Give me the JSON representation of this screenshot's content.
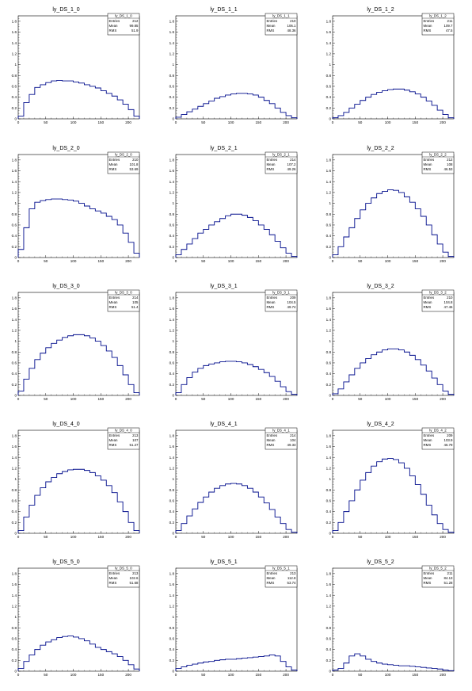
{
  "chart_data": [
    {
      "type": "line",
      "title": "ly_DS_1_0",
      "stats": {
        "name": "ly_DS_1_0",
        "entries_label": "Entries",
        "entries": "212",
        "mean_label": "Mean",
        "mean": "99.85",
        "rms_label": "RMS",
        "rms": "51.9"
      },
      "xlim": [
        0,
        220
      ],
      "ylim": [
        0,
        1.9
      ],
      "xticks": [
        0,
        50,
        100,
        150,
        200
      ],
      "yticks": [
        0,
        0.2,
        0.4,
        0.6,
        0.8,
        1,
        1.2,
        1.4,
        1.6,
        1.8
      ],
      "x": [
        0,
        10,
        20,
        30,
        40,
        50,
        60,
        70,
        80,
        90,
        100,
        110,
        120,
        130,
        140,
        150,
        160,
        170,
        180,
        190,
        200,
        210
      ],
      "y": [
        0.05,
        0.3,
        0.45,
        0.58,
        0.63,
        0.67,
        0.7,
        0.71,
        0.7,
        0.7,
        0.68,
        0.66,
        0.63,
        0.6,
        0.57,
        0.52,
        0.47,
        0.42,
        0.35,
        0.27,
        0.17,
        0.05
      ]
    },
    {
      "type": "line",
      "title": "ly_DS_1_1",
      "stats": {
        "name": "ly_DS_1_1",
        "entries_label": "Entries",
        "entries": "210",
        "mean_label": "Mean",
        "mean": "106.1",
        "rms_label": "RMS",
        "rms": "48.36"
      },
      "xlim": [
        0,
        220
      ],
      "ylim": [
        0,
        1.9
      ],
      "xticks": [
        0,
        50,
        100,
        150,
        200
      ],
      "yticks": [
        0,
        0.2,
        0.4,
        0.6,
        0.8,
        1,
        1.2,
        1.4,
        1.6,
        1.8
      ],
      "x": [
        0,
        10,
        20,
        30,
        40,
        50,
        60,
        70,
        80,
        90,
        100,
        110,
        120,
        130,
        140,
        150,
        160,
        170,
        180,
        190,
        200,
        210
      ],
      "y": [
        0.03,
        0.08,
        0.13,
        0.18,
        0.23,
        0.28,
        0.33,
        0.38,
        0.41,
        0.44,
        0.46,
        0.47,
        0.47,
        0.46,
        0.44,
        0.4,
        0.34,
        0.28,
        0.2,
        0.12,
        0.06,
        0.02
      ]
    },
    {
      "type": "line",
      "title": "ly_DS_1_2",
      "stats": {
        "name": "ly_DS_1_2",
        "entries_label": "Entries",
        "entries": "211",
        "mean_label": "Mean",
        "mean": "109.7",
        "rms_label": "RMS",
        "rms": "47.5"
      },
      "xlim": [
        0,
        220
      ],
      "ylim": [
        0,
        1.9
      ],
      "xticks": [
        0,
        50,
        100,
        150,
        200
      ],
      "yticks": [
        0,
        0.2,
        0.4,
        0.6,
        0.8,
        1,
        1.2,
        1.4,
        1.6,
        1.8
      ],
      "x": [
        0,
        10,
        20,
        30,
        40,
        50,
        60,
        70,
        80,
        90,
        100,
        110,
        120,
        130,
        140,
        150,
        160,
        170,
        180,
        190,
        200,
        210
      ],
      "y": [
        0.02,
        0.06,
        0.12,
        0.2,
        0.27,
        0.34,
        0.4,
        0.45,
        0.49,
        0.52,
        0.54,
        0.55,
        0.55,
        0.53,
        0.5,
        0.46,
        0.4,
        0.33,
        0.25,
        0.16,
        0.08,
        0.02
      ]
    },
    {
      "type": "line",
      "title": "ly_DS_2_0",
      "stats": {
        "name": "ly_DS_2_0",
        "entries_label": "Entries",
        "entries": "210",
        "mean_label": "Mean",
        "mean": "101.8",
        "rms_label": "RMS",
        "rms": "53.69"
      },
      "xlim": [
        0,
        220
      ],
      "ylim": [
        0,
        1.9
      ],
      "xticks": [
        0,
        50,
        100,
        150,
        200
      ],
      "yticks": [
        0,
        0.2,
        0.4,
        0.6,
        0.8,
        1,
        1.2,
        1.4,
        1.6,
        1.8
      ],
      "x": [
        0,
        10,
        20,
        30,
        40,
        50,
        60,
        70,
        80,
        90,
        100,
        110,
        120,
        130,
        140,
        150,
        160,
        170,
        180,
        190,
        200,
        210
      ],
      "y": [
        0.15,
        0.55,
        0.9,
        1.02,
        1.05,
        1.07,
        1.08,
        1.08,
        1.07,
        1.06,
        1.04,
        1.0,
        0.95,
        0.9,
        0.86,
        0.82,
        0.76,
        0.7,
        0.6,
        0.45,
        0.28,
        0.08
      ]
    },
    {
      "type": "line",
      "title": "ly_DS_2_1",
      "stats": {
        "name": "ly_DS_2_1",
        "entries_label": "Entries",
        "entries": "214",
        "mean_label": "Mean",
        "mean": "107.2",
        "rms_label": "RMS",
        "rms": "49.26"
      },
      "xlim": [
        0,
        220
      ],
      "ylim": [
        0,
        1.9
      ],
      "xticks": [
        0,
        50,
        100,
        150,
        200
      ],
      "yticks": [
        0,
        0.2,
        0.4,
        0.6,
        0.8,
        1,
        1.2,
        1.4,
        1.6,
        1.8
      ],
      "x": [
        0,
        10,
        20,
        30,
        40,
        50,
        60,
        70,
        80,
        90,
        100,
        110,
        120,
        130,
        140,
        150,
        160,
        170,
        180,
        190,
        200,
        210
      ],
      "y": [
        0.05,
        0.15,
        0.25,
        0.35,
        0.45,
        0.52,
        0.6,
        0.66,
        0.72,
        0.77,
        0.8,
        0.8,
        0.78,
        0.74,
        0.68,
        0.6,
        0.52,
        0.42,
        0.3,
        0.18,
        0.08,
        0.02
      ]
    },
    {
      "type": "line",
      "title": "ly_DS_2_2",
      "stats": {
        "name": "ly_DS_2_2",
        "entries_label": "Entries",
        "entries": "212",
        "mean_label": "Mean",
        "mean": "108",
        "rms_label": "RMS",
        "rms": "46.53"
      },
      "xlim": [
        0,
        220
      ],
      "ylim": [
        0,
        1.9
      ],
      "xticks": [
        0,
        50,
        100,
        150,
        200
      ],
      "yticks": [
        0,
        0.2,
        0.4,
        0.6,
        0.8,
        1,
        1.2,
        1.4,
        1.6,
        1.8
      ],
      "x": [
        0,
        10,
        20,
        30,
        40,
        50,
        60,
        70,
        80,
        90,
        100,
        110,
        120,
        130,
        140,
        150,
        160,
        170,
        180,
        190,
        200,
        210
      ],
      "y": [
        0.05,
        0.2,
        0.38,
        0.55,
        0.72,
        0.88,
        1.0,
        1.1,
        1.18,
        1.22,
        1.25,
        1.24,
        1.2,
        1.12,
        1.02,
        0.9,
        0.76,
        0.6,
        0.42,
        0.25,
        0.1,
        0.02
      ]
    },
    {
      "type": "line",
      "title": "ly_DS_3_0",
      "stats": {
        "name": "ly_DS_3_0",
        "entries_label": "Entries",
        "entries": "214",
        "mean_label": "Mean",
        "mean": "105",
        "rms_label": "RMS",
        "rms": "51.4"
      },
      "xlim": [
        0,
        220
      ],
      "ylim": [
        0,
        1.9
      ],
      "xticks": [
        0,
        50,
        100,
        150,
        200
      ],
      "yticks": [
        0,
        0.2,
        0.4,
        0.6,
        0.8,
        1,
        1.2,
        1.4,
        1.6,
        1.8
      ],
      "x": [
        0,
        10,
        20,
        30,
        40,
        50,
        60,
        70,
        80,
        90,
        100,
        110,
        120,
        130,
        140,
        150,
        160,
        170,
        180,
        190,
        200,
        210
      ],
      "y": [
        0.08,
        0.3,
        0.5,
        0.66,
        0.78,
        0.88,
        0.96,
        1.02,
        1.07,
        1.1,
        1.12,
        1.12,
        1.1,
        1.06,
        1.0,
        0.92,
        0.82,
        0.7,
        0.55,
        0.38,
        0.2,
        0.05
      ]
    },
    {
      "type": "line",
      "title": "ly_DS_3_1",
      "stats": {
        "name": "ly_DS_3_1",
        "entries_label": "Entries",
        "entries": "209",
        "mean_label": "Mean",
        "mean": "104.5",
        "rms_label": "RMS",
        "rms": "49.74"
      },
      "xlim": [
        0,
        220
      ],
      "ylim": [
        0,
        1.9
      ],
      "xticks": [
        0,
        50,
        100,
        150,
        200
      ],
      "yticks": [
        0,
        0.2,
        0.4,
        0.6,
        0.8,
        1,
        1.2,
        1.4,
        1.6,
        1.8
      ],
      "x": [
        0,
        10,
        20,
        30,
        40,
        50,
        60,
        70,
        80,
        90,
        100,
        110,
        120,
        130,
        140,
        150,
        160,
        170,
        180,
        190,
        200,
        210
      ],
      "y": [
        0.05,
        0.2,
        0.33,
        0.43,
        0.5,
        0.55,
        0.58,
        0.6,
        0.62,
        0.63,
        0.63,
        0.62,
        0.6,
        0.57,
        0.53,
        0.48,
        0.42,
        0.35,
        0.26,
        0.16,
        0.07,
        0.02
      ]
    },
    {
      "type": "line",
      "title": "ly_DS_3_2",
      "stats": {
        "name": "ly_DS_3_2",
        "entries_label": "Entries",
        "entries": "210",
        "mean_label": "Mean",
        "mean": "104.8",
        "rms_label": "RMS",
        "rms": "47.46"
      },
      "xlim": [
        0,
        220
      ],
      "ylim": [
        0,
        1.9
      ],
      "xticks": [
        0,
        50,
        100,
        150,
        200
      ],
      "yticks": [
        0,
        0.2,
        0.4,
        0.6,
        0.8,
        1,
        1.2,
        1.4,
        1.6,
        1.8
      ],
      "x": [
        0,
        10,
        20,
        30,
        40,
        50,
        60,
        70,
        80,
        90,
        100,
        110,
        120,
        130,
        140,
        150,
        160,
        170,
        180,
        190,
        200,
        210
      ],
      "y": [
        0.03,
        0.12,
        0.25,
        0.38,
        0.5,
        0.6,
        0.68,
        0.75,
        0.8,
        0.84,
        0.86,
        0.86,
        0.84,
        0.8,
        0.74,
        0.66,
        0.56,
        0.45,
        0.32,
        0.2,
        0.08,
        0.02
      ]
    },
    {
      "type": "line",
      "title": "ly_DS_4_0",
      "stats": {
        "name": "ly_DS_4_0",
        "entries_label": "Entries",
        "entries": "213",
        "mean_label": "Mean",
        "mean": "107",
        "rms_label": "RMS",
        "rms": "51.27"
      },
      "xlim": [
        0,
        220
      ],
      "ylim": [
        0,
        1.9
      ],
      "xticks": [
        0,
        50,
        100,
        150,
        200
      ],
      "yticks": [
        0,
        0.2,
        0.4,
        0.6,
        0.8,
        1,
        1.2,
        1.4,
        1.6,
        1.8
      ],
      "x": [
        0,
        10,
        20,
        30,
        40,
        50,
        60,
        70,
        80,
        90,
        100,
        110,
        120,
        130,
        140,
        150,
        160,
        170,
        180,
        190,
        200,
        210
      ],
      "y": [
        0.05,
        0.3,
        0.52,
        0.7,
        0.84,
        0.95,
        1.03,
        1.1,
        1.14,
        1.17,
        1.18,
        1.18,
        1.16,
        1.12,
        1.06,
        0.98,
        0.88,
        0.75,
        0.58,
        0.4,
        0.2,
        0.05
      ]
    },
    {
      "type": "line",
      "title": "ly_DS_4_1",
      "stats": {
        "name": "ly_DS_4_1",
        "entries_label": "Entries",
        "entries": "214",
        "mean_label": "Mean",
        "mean": "104",
        "rms_label": "RMS",
        "rms": "49.33"
      },
      "xlim": [
        0,
        220
      ],
      "ylim": [
        0,
        1.9
      ],
      "xticks": [
        0,
        50,
        100,
        150,
        200
      ],
      "yticks": [
        0,
        0.2,
        0.4,
        0.6,
        0.8,
        1,
        1.2,
        1.4,
        1.6,
        1.8
      ],
      "x": [
        0,
        10,
        20,
        30,
        40,
        50,
        60,
        70,
        80,
        90,
        100,
        110,
        120,
        130,
        140,
        150,
        160,
        170,
        180,
        190,
        200,
        210
      ],
      "y": [
        0.05,
        0.18,
        0.32,
        0.45,
        0.57,
        0.67,
        0.76,
        0.83,
        0.88,
        0.91,
        0.92,
        0.91,
        0.88,
        0.83,
        0.76,
        0.67,
        0.56,
        0.44,
        0.3,
        0.18,
        0.07,
        0.02
      ]
    },
    {
      "type": "line",
      "title": "ly_DS_4_2",
      "stats": {
        "name": "ly_DS_4_2",
        "entries_label": "Entries",
        "entries": "209",
        "mean_label": "Mean",
        "mean": "103.9",
        "rms_label": "RMS",
        "rms": "46.79"
      },
      "xlim": [
        0,
        220
      ],
      "ylim": [
        0,
        1.9
      ],
      "xticks": [
        0,
        50,
        100,
        150,
        200
      ],
      "yticks": [
        0,
        0.2,
        0.4,
        0.6,
        0.8,
        1,
        1.2,
        1.4,
        1.6,
        1.8
      ],
      "x": [
        0,
        10,
        20,
        30,
        40,
        50,
        60,
        70,
        80,
        90,
        100,
        110,
        120,
        130,
        140,
        150,
        160,
        170,
        180,
        190,
        200,
        210
      ],
      "y": [
        0.05,
        0.2,
        0.4,
        0.6,
        0.8,
        0.98,
        1.12,
        1.24,
        1.32,
        1.37,
        1.38,
        1.36,
        1.3,
        1.2,
        1.06,
        0.9,
        0.72,
        0.52,
        0.34,
        0.18,
        0.07,
        0.02
      ]
    },
    {
      "type": "line",
      "title": "ly_DS_5_0",
      "stats": {
        "name": "ly_DS_5_0",
        "entries_label": "Entries",
        "entries": "213",
        "mean_label": "Mean",
        "mean": "102.6",
        "rms_label": "RMS",
        "rms": "51.68"
      },
      "xlim": [
        0,
        220
      ],
      "ylim": [
        0,
        1.9
      ],
      "xticks": [
        0,
        50,
        100,
        150,
        200
      ],
      "yticks": [
        0,
        0.2,
        0.4,
        0.6,
        0.8,
        1,
        1.2,
        1.4,
        1.6,
        1.8
      ],
      "x": [
        0,
        10,
        20,
        30,
        40,
        50,
        60,
        70,
        80,
        90,
        100,
        110,
        120,
        130,
        140,
        150,
        160,
        170,
        180,
        190,
        200,
        210
      ],
      "y": [
        0.05,
        0.18,
        0.3,
        0.4,
        0.48,
        0.54,
        0.58,
        0.62,
        0.64,
        0.65,
        0.63,
        0.6,
        0.56,
        0.5,
        0.44,
        0.4,
        0.36,
        0.32,
        0.27,
        0.2,
        0.12,
        0.04
      ]
    },
    {
      "type": "line",
      "title": "ly_DS_5_1",
      "stats": {
        "name": "ly_DS_5_1",
        "entries_label": "Entries",
        "entries": "213",
        "mean_label": "Mean",
        "mean": "112.8",
        "rms_label": "RMS",
        "rms": "53.74"
      },
      "xlim": [
        0,
        220
      ],
      "ylim": [
        0,
        1.9
      ],
      "xticks": [
        0,
        50,
        100,
        150,
        200
      ],
      "yticks": [
        0,
        0.2,
        0.4,
        0.6,
        0.8,
        1,
        1.2,
        1.4,
        1.6,
        1.8
      ],
      "x": [
        0,
        10,
        20,
        30,
        40,
        50,
        60,
        70,
        80,
        90,
        100,
        110,
        120,
        130,
        140,
        150,
        160,
        170,
        180,
        190,
        200,
        210
      ],
      "y": [
        0.05,
        0.08,
        0.11,
        0.13,
        0.15,
        0.17,
        0.18,
        0.2,
        0.21,
        0.22,
        0.22,
        0.23,
        0.24,
        0.25,
        0.26,
        0.27,
        0.28,
        0.3,
        0.28,
        0.18,
        0.08,
        0.02
      ]
    },
    {
      "type": "line",
      "title": "ly_DS_5_2",
      "stats": {
        "name": "ly_DS_5_2",
        "entries_label": "Entries",
        "entries": "211",
        "mean_label": "Mean",
        "mean": "84.13",
        "rms_label": "RMS",
        "rms": "51.28"
      },
      "xlim": [
        0,
        220
      ],
      "ylim": [
        0,
        1.9
      ],
      "xticks": [
        0,
        50,
        100,
        150,
        200
      ],
      "yticks": [
        0,
        0.2,
        0.4,
        0.6,
        0.8,
        1,
        1.2,
        1.4,
        1.6,
        1.8
      ],
      "x": [
        0,
        10,
        20,
        30,
        40,
        50,
        60,
        70,
        80,
        90,
        100,
        110,
        120,
        130,
        140,
        150,
        160,
        170,
        180,
        190,
        200,
        210
      ],
      "y": [
        0.02,
        0.05,
        0.15,
        0.28,
        0.32,
        0.28,
        0.22,
        0.18,
        0.15,
        0.13,
        0.12,
        0.11,
        0.1,
        0.1,
        0.09,
        0.08,
        0.07,
        0.06,
        0.05,
        0.04,
        0.02,
        0.01
      ]
    }
  ]
}
